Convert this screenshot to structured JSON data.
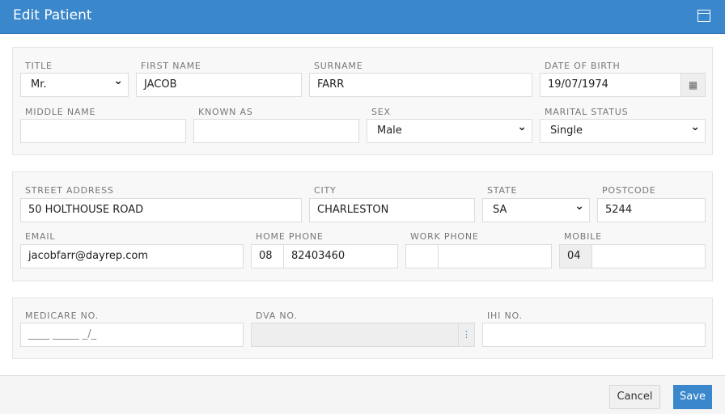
{
  "header": {
    "title": "Edit Patient",
    "maximize_icon": "window-maximize-icon"
  },
  "personal": {
    "title": {
      "label": "TITLE",
      "value": "Mr."
    },
    "first_name": {
      "label": "FIRST NAME",
      "value": "JACOB"
    },
    "surname": {
      "label": "SURNAME",
      "value": "FARR"
    },
    "dob": {
      "label": "DATE OF BIRTH",
      "value": "19/07/1974"
    },
    "middle_name": {
      "label": "MIDDLE NAME",
      "value": ""
    },
    "known_as": {
      "label": "KNOWN AS",
      "value": ""
    },
    "sex": {
      "label": "SEX",
      "value": "Male"
    },
    "marital": {
      "label": "MARITAL STATUS",
      "value": "Single"
    }
  },
  "contact": {
    "street": {
      "label": "STREET ADDRESS",
      "value": "50 HOLTHOUSE ROAD"
    },
    "city": {
      "label": "CITY",
      "value": "CHARLESTON"
    },
    "state": {
      "label": "STATE",
      "value": "SA"
    },
    "postcode": {
      "label": "POSTCODE",
      "value": "5244"
    },
    "email": {
      "label": "EMAIL",
      "value": "jacobfarr@dayrep.com"
    },
    "home_phone": {
      "label": "HOME PHONE",
      "area": "08",
      "value": "82403460"
    },
    "work_phone": {
      "label": "WORK PHONE",
      "area": "",
      "value": ""
    },
    "mobile": {
      "label": "MOBILE",
      "prefix": "04",
      "value": ""
    }
  },
  "ids": {
    "medicare": {
      "label": "MEDICARE NO.",
      "placeholder": "____ _____ _/_"
    },
    "dva": {
      "label": "DVA NO.",
      "value": ""
    },
    "ihi": {
      "label": "IHI NO.",
      "value": ""
    }
  },
  "footer": {
    "cancel": "Cancel",
    "save": "Save"
  },
  "colors": {
    "primary": "#3a87cc"
  }
}
